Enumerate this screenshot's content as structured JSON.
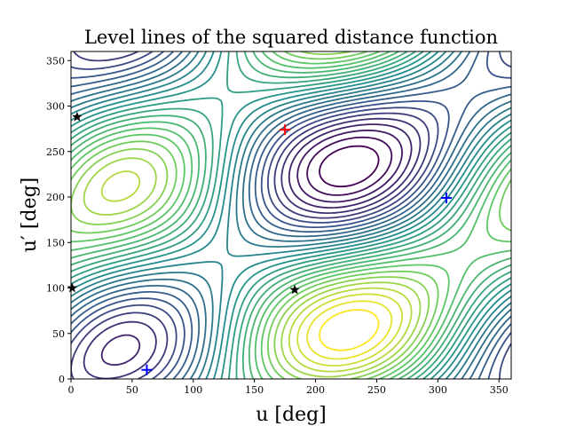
{
  "chart_data": {
    "type": "contour",
    "title": "Level lines of the squared distance function",
    "xlabel": "u [deg]",
    "ylabel": "u′ [deg]",
    "xlim": [
      0,
      360
    ],
    "ylim": [
      0,
      360
    ],
    "xticks": [
      0,
      50,
      100,
      150,
      200,
      250,
      300,
      350
    ],
    "yticks": [
      0,
      50,
      100,
      150,
      200,
      250,
      300,
      350
    ],
    "colormap": [
      "#440154",
      "#3b528b",
      "#21918c",
      "#5ec962",
      "#fde725"
    ],
    "contour_lines": 28,
    "markers": [
      {
        "kind": "maximum",
        "symbol": "plus",
        "color": "#ff0000",
        "x": 175,
        "y": 274
      },
      {
        "kind": "minimum",
        "symbol": "plus",
        "color": "#0000ff",
        "x": 307,
        "y": 199
      },
      {
        "kind": "minimum",
        "symbol": "plus",
        "color": "#0000ff",
        "x": 62,
        "y": 10
      },
      {
        "kind": "saddle",
        "symbol": "star",
        "color": "#000000",
        "x": 5,
        "y": 288
      },
      {
        "kind": "saddle",
        "symbol": "star",
        "color": "#000000",
        "x": 183,
        "y": 98
      },
      {
        "kind": "saddle",
        "symbol": "star",
        "color": "#000000",
        "x": 1,
        "y": 100
      }
    ]
  }
}
